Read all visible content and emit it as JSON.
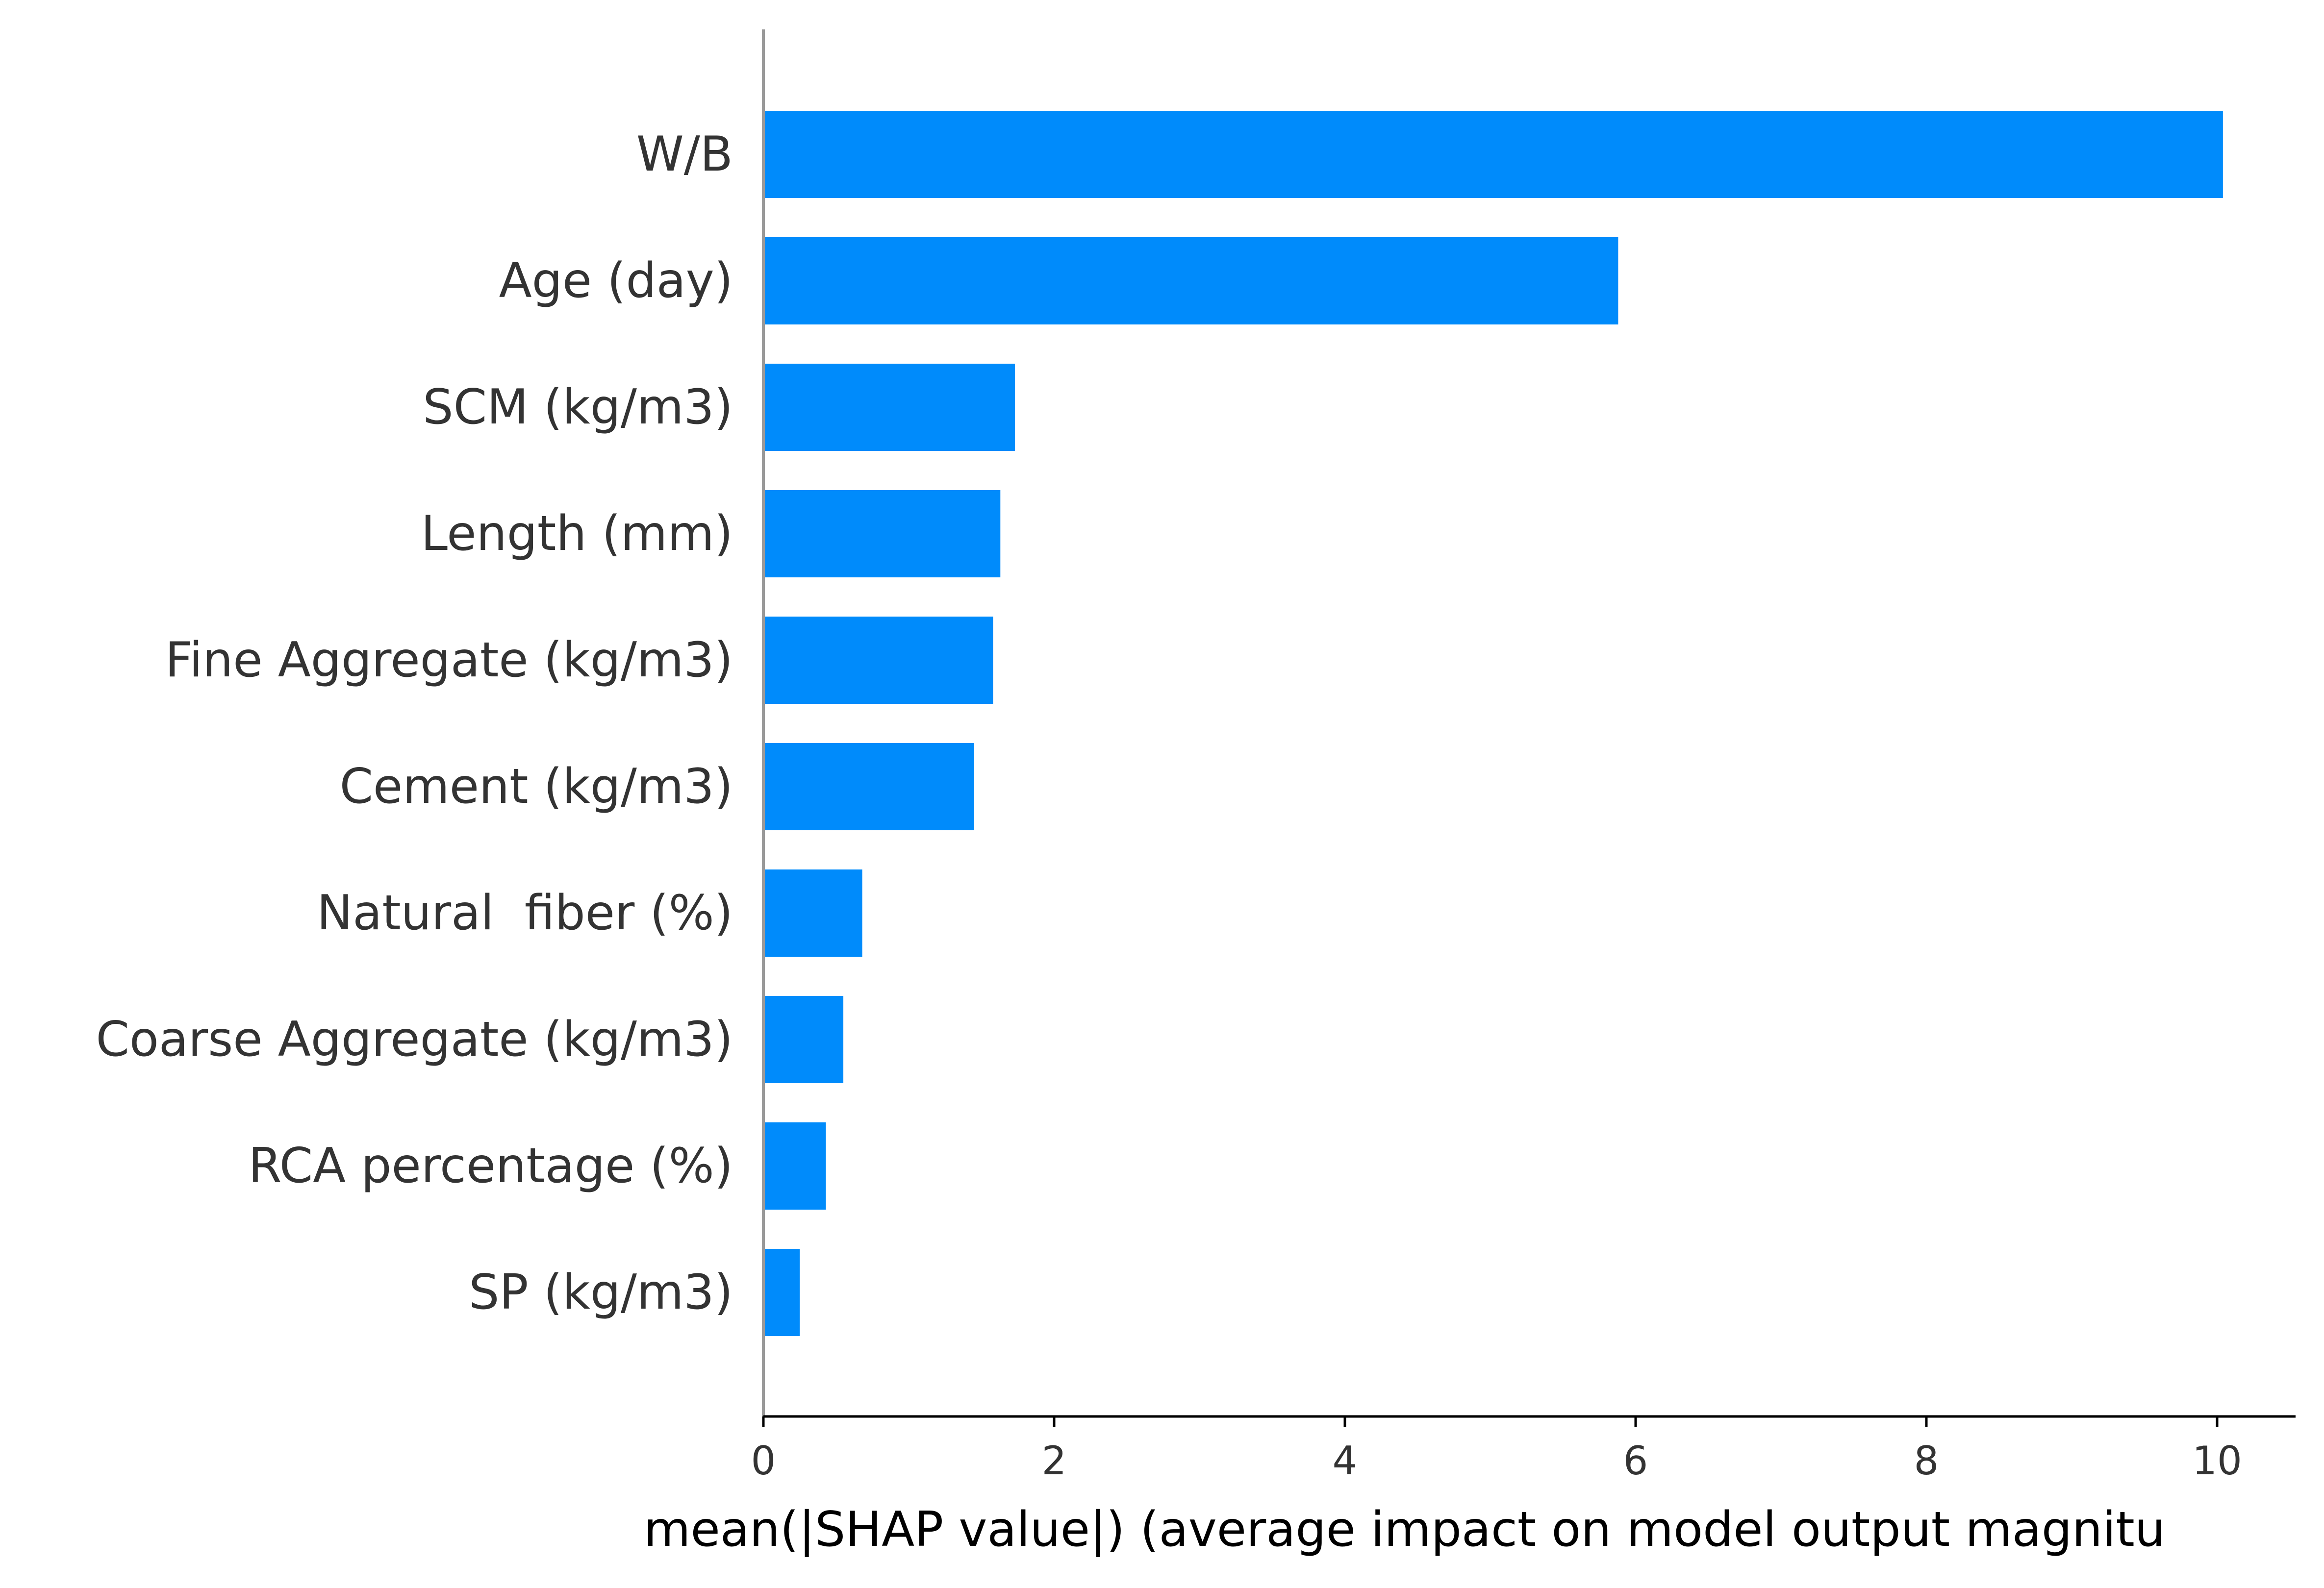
{
  "chart_data": {
    "type": "bar",
    "orientation": "horizontal",
    "categories": [
      "W/B",
      "Age (day)",
      "SCM (kg/m3)",
      "Length (mm)",
      "Fine Aggregate (kg/m3)",
      "Cement (kg/m3)",
      "Natural  fiber (%)",
      "Coarse Aggregate (kg/m3)",
      "RCA percentage (%)",
      "SP (kg/m3)"
    ],
    "values": [
      10.04,
      5.88,
      1.73,
      1.63,
      1.58,
      1.45,
      0.68,
      0.55,
      0.43,
      0.25
    ],
    "title": "",
    "xlabel": "mean(|SHAP value|) (average impact on model output magnitu",
    "ylabel": "",
    "xlim": [
      0,
      10.5
    ],
    "xticks": [
      "0",
      "2",
      "4",
      "6",
      "8",
      "10"
    ],
    "grid": false,
    "legend": "none",
    "bar_color": "#008bfb"
  }
}
